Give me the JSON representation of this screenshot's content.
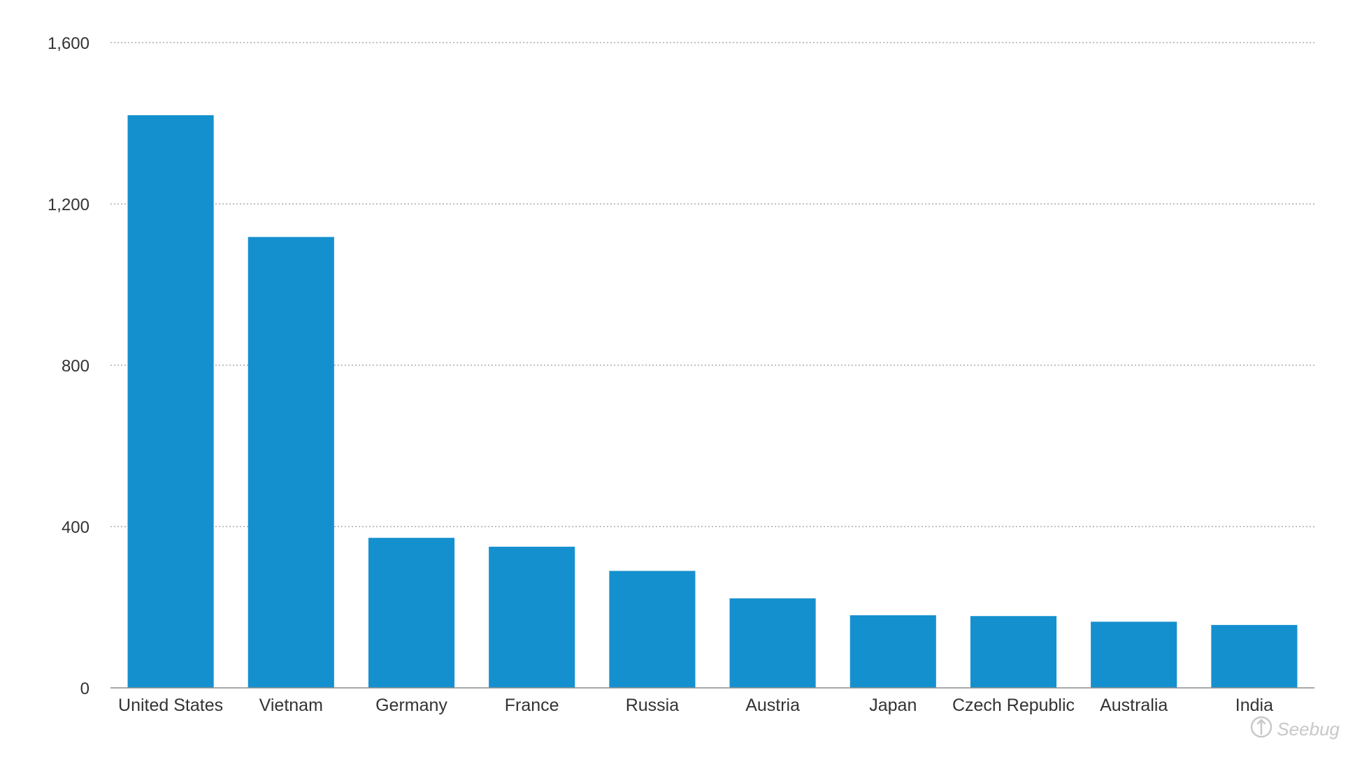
{
  "colors": {
    "bar": "#1590cf",
    "background": "#ffffff",
    "text": "#333333",
    "grid": "#9a9a9a"
  },
  "chart_data": {
    "type": "bar",
    "title": "",
    "xlabel": "",
    "ylabel": "",
    "categories": [
      "United States",
      "Vietnam",
      "Germany",
      "France",
      "Russia",
      "Austria",
      "Japan",
      "Czech Republic",
      "Australia",
      "India"
    ],
    "values": [
      1420,
      1118,
      372,
      350,
      290,
      222,
      180,
      178,
      164,
      156
    ],
    "ylim": [
      0,
      1600
    ],
    "yticks": [
      0,
      400,
      800,
      1200,
      1600
    ],
    "ytick_labels": [
      "0",
      "400",
      "800",
      "1,200",
      "1,600"
    ],
    "grid": true,
    "legend": "none"
  },
  "watermark": {
    "text": "Seebug",
    "icon": "seebug-logo-icon"
  }
}
